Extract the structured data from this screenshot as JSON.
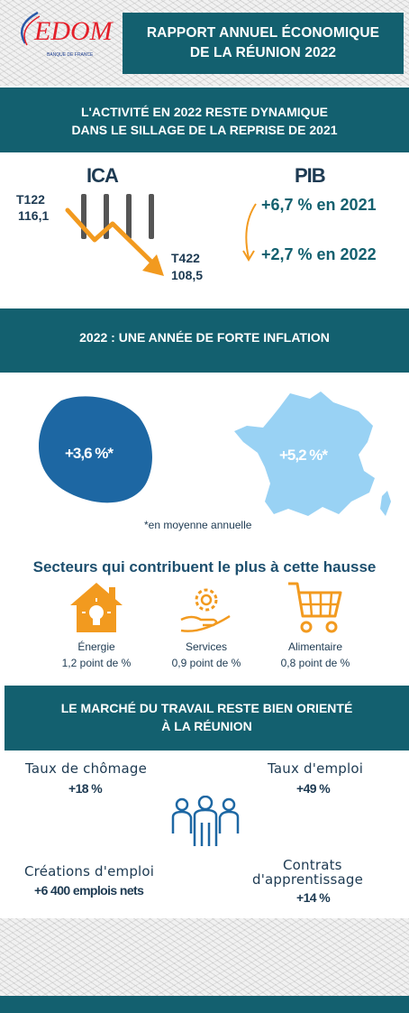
{
  "header": {
    "logo_text": "EDOM",
    "logo_subtitle": "BANQUE DE FRANCE",
    "title_line1": "RAPPORT ANNUEL ÉCONOMIQUE",
    "title_line2": "DE LA RÉUNION 2022",
    "colors": {
      "teal": "#13606f",
      "logo_red": "#e4202a",
      "logo_blue": "#1f3f8f"
    }
  },
  "activity": {
    "title_line1": "L'ACTIVITÉ EN 2022 RESTE DYNAMIQUE",
    "title_line2": "DANS LE SILLAGE DE LA REPRISE DE 2021",
    "ica": {
      "title": "ICA",
      "start_label": "T122",
      "start_value": "116,1",
      "end_label": "T422",
      "end_value": "108,5"
    },
    "pib": {
      "title": "PIB",
      "line1": "+6,7 % en 2021",
      "line2": "+2,7 % en 2022"
    }
  },
  "inflation": {
    "title": "2022 : UNE ANNÉE DE FORTE INFLATION",
    "reunion_value": "+3,6 %*",
    "france_value": "+5,2 %*",
    "footnote": "*en moyenne annuelle",
    "sectors_title": "Secteurs qui contribuent le plus à cette hausse",
    "sectors": [
      {
        "icon": "house-bulb-icon",
        "name": "Énergie",
        "value": "1,2 point de %"
      },
      {
        "icon": "gear-hand-icon",
        "name": "Services",
        "value": "0,9 point de %"
      },
      {
        "icon": "shopping-cart-icon",
        "name": "Alimentaire",
        "value": "0,8 point de %"
      }
    ],
    "colors": {
      "reunion": "#1d67a3",
      "france": "#99d2f4",
      "icon_orange": "#f29a1f"
    }
  },
  "labour": {
    "title_line1": "LE MARCHÉ DU TRAVAIL RESTE BIEN ORIENTÉ",
    "title_line2": "À LA RÉUNION",
    "stats": [
      {
        "label": "Taux de chômage",
        "value": "+18 %"
      },
      {
        "label": "Taux d'emploi",
        "value": "+49 %"
      },
      {
        "label": "Créations d'emploi",
        "value": "+6 400 emplois nets"
      },
      {
        "label_line1": "Contrats",
        "label_line2": "d'apprentissage",
        "value": "+14 %"
      }
    ]
  }
}
